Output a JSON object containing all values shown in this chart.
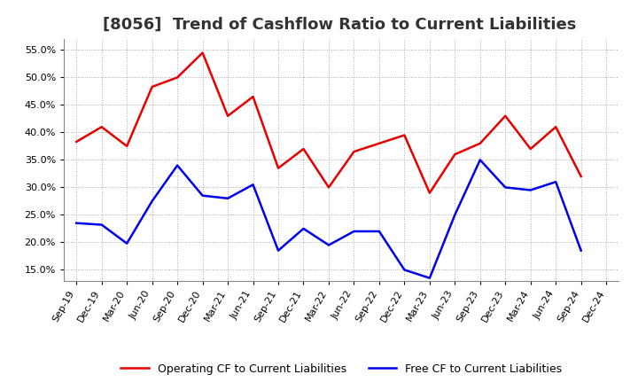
{
  "title": "[8056]  Trend of Cashflow Ratio to Current Liabilities",
  "x_labels": [
    "Sep-19",
    "Dec-19",
    "Mar-20",
    "Jun-20",
    "Sep-20",
    "Dec-20",
    "Mar-21",
    "Jun-21",
    "Sep-21",
    "Dec-21",
    "Mar-22",
    "Jun-22",
    "Sep-22",
    "Dec-22",
    "Mar-23",
    "Jun-23",
    "Sep-23",
    "Dec-23",
    "Mar-24",
    "Jun-24",
    "Sep-24",
    "Dec-24"
  ],
  "operating_cf": [
    0.383,
    0.41,
    0.375,
    0.483,
    0.5,
    0.545,
    0.43,
    0.465,
    0.335,
    0.37,
    0.3,
    0.365,
    0.38,
    0.395,
    0.29,
    0.36,
    0.38,
    0.43,
    0.37,
    0.41,
    0.32,
    null
  ],
  "free_cf": [
    0.235,
    0.232,
    0.198,
    0.275,
    0.34,
    0.285,
    0.28,
    0.305,
    0.185,
    0.225,
    0.195,
    0.22,
    0.22,
    0.15,
    0.135,
    0.25,
    0.35,
    0.3,
    0.295,
    0.31,
    0.185,
    null
  ],
  "operating_color": "#e80000",
  "free_color": "#0000ee",
  "ylim": [
    0.13,
    0.57
  ],
  "yticks": [
    0.15,
    0.2,
    0.25,
    0.3,
    0.35,
    0.4,
    0.45,
    0.5,
    0.55
  ],
  "legend_operating": "Operating CF to Current Liabilities",
  "legend_free": "Free CF to Current Liabilities",
  "bg_color": "#ffffff",
  "grid_color": "#aaaaaa",
  "title_fontsize": 13,
  "tick_fontsize": 8,
  "legend_fontsize": 9
}
